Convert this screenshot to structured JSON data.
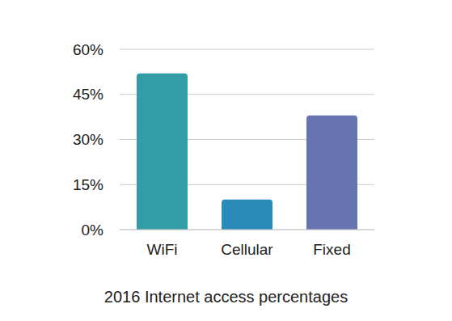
{
  "chart_data": {
    "type": "bar",
    "title": "2016 Internet access percentages",
    "categories": [
      "WiFi",
      "Cellular",
      "Fixed"
    ],
    "values": [
      52,
      10,
      38
    ],
    "colors": [
      "#329da6",
      "#2a8ab8",
      "#6674b0"
    ],
    "ylim": [
      0,
      60
    ],
    "yticks": [
      {
        "value": 0,
        "label": "0%"
      },
      {
        "value": 15,
        "label": "15%"
      },
      {
        "value": 30,
        "label": "30%"
      },
      {
        "value": 45,
        "label": "45%"
      },
      {
        "value": 60,
        "label": "60%"
      }
    ],
    "grid": true
  }
}
